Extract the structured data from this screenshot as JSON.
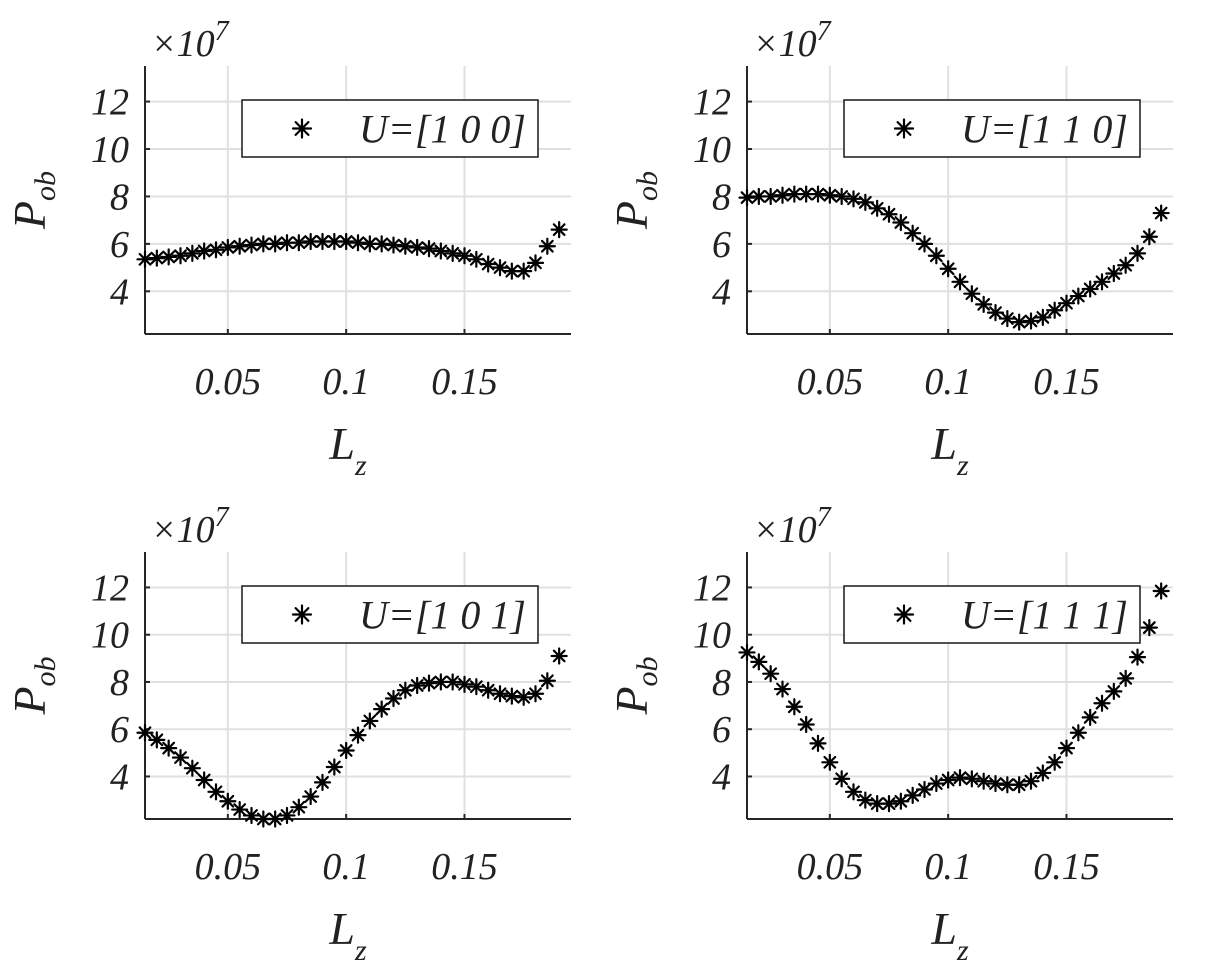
{
  "chart_data": [
    {
      "type": "scatter",
      "legend": "U=[1 0 0]",
      "legend_position": "top-right",
      "xlabel": "L",
      "xlabel_sub": "z",
      "ylabel": "P",
      "ylabel_sub": "ob",
      "multiplier": "×10",
      "multiplier_exp": "7",
      "xlim": [
        0.015,
        0.195
      ],
      "ylim": [
        2.2,
        13.5
      ],
      "xticks": [
        0.05,
        0.1,
        0.15
      ],
      "xtick_labels": [
        "0.05",
        "0.1",
        "0.15"
      ],
      "yticks": [
        4,
        6,
        8,
        10,
        12
      ],
      "ytick_labels": [
        "4",
        "6",
        "8",
        "10",
        "12"
      ],
      "grid": true,
      "x": [
        0.015,
        0.02,
        0.025,
        0.03,
        0.035,
        0.04,
        0.045,
        0.05,
        0.055,
        0.06,
        0.065,
        0.07,
        0.075,
        0.08,
        0.085,
        0.09,
        0.095,
        0.1,
        0.105,
        0.11,
        0.115,
        0.12,
        0.125,
        0.13,
        0.135,
        0.14,
        0.145,
        0.15,
        0.155,
        0.16,
        0.165,
        0.17,
        0.175,
        0.18,
        0.185,
        0.19
      ],
      "y": [
        5.35,
        5.4,
        5.45,
        5.5,
        5.6,
        5.7,
        5.75,
        5.85,
        5.9,
        5.95,
        6.0,
        6.0,
        6.05,
        6.05,
        6.1,
        6.1,
        6.1,
        6.1,
        6.05,
        6.0,
        6.0,
        5.95,
        5.9,
        5.85,
        5.8,
        5.7,
        5.6,
        5.5,
        5.35,
        5.15,
        5.0,
        4.85,
        4.85,
        5.2,
        5.9,
        6.6
      ]
    },
    {
      "type": "scatter",
      "legend": "U=[1 1 0]",
      "legend_position": "top-right",
      "xlabel": "L",
      "xlabel_sub": "z",
      "ylabel": "P",
      "ylabel_sub": "ob",
      "multiplier": "×10",
      "multiplier_exp": "7",
      "xlim": [
        0.015,
        0.195
      ],
      "ylim": [
        2.2,
        13.5
      ],
      "xticks": [
        0.05,
        0.1,
        0.15
      ],
      "xtick_labels": [
        "0.05",
        "0.1",
        "0.15"
      ],
      "yticks": [
        4,
        6,
        8,
        10,
        12
      ],
      "ytick_labels": [
        "4",
        "6",
        "8",
        "10",
        "12"
      ],
      "grid": true,
      "x": [
        0.015,
        0.02,
        0.025,
        0.03,
        0.035,
        0.04,
        0.045,
        0.05,
        0.055,
        0.06,
        0.065,
        0.07,
        0.075,
        0.08,
        0.085,
        0.09,
        0.095,
        0.1,
        0.105,
        0.11,
        0.115,
        0.12,
        0.125,
        0.13,
        0.135,
        0.14,
        0.145,
        0.15,
        0.155,
        0.16,
        0.165,
        0.17,
        0.175,
        0.18,
        0.185,
        0.19
      ],
      "y": [
        7.95,
        8.0,
        8.0,
        8.05,
        8.1,
        8.1,
        8.1,
        8.05,
        8.0,
        7.9,
        7.75,
        7.5,
        7.25,
        6.9,
        6.45,
        6.0,
        5.5,
        4.95,
        4.4,
        3.9,
        3.45,
        3.1,
        2.85,
        2.7,
        2.75,
        2.9,
        3.2,
        3.5,
        3.8,
        4.1,
        4.4,
        4.75,
        5.1,
        5.6,
        6.3,
        7.3
      ]
    },
    {
      "type": "scatter",
      "legend": "U=[1 0 1]",
      "legend_position": "top-right",
      "xlabel": "L",
      "xlabel_sub": "z",
      "ylabel": "P",
      "ylabel_sub": "ob",
      "multiplier": "×10",
      "multiplier_exp": "7",
      "xlim": [
        0.015,
        0.195
      ],
      "ylim": [
        2.2,
        13.5
      ],
      "xticks": [
        0.05,
        0.1,
        0.15
      ],
      "xtick_labels": [
        "0.05",
        "0.1",
        "0.15"
      ],
      "yticks": [
        4,
        6,
        8,
        10,
        12
      ],
      "ytick_labels": [
        "4",
        "6",
        "8",
        "10",
        "12"
      ],
      "grid": true,
      "x": [
        0.015,
        0.02,
        0.025,
        0.03,
        0.035,
        0.04,
        0.045,
        0.05,
        0.055,
        0.06,
        0.065,
        0.07,
        0.075,
        0.08,
        0.085,
        0.09,
        0.095,
        0.1,
        0.105,
        0.11,
        0.115,
        0.12,
        0.125,
        0.13,
        0.135,
        0.14,
        0.145,
        0.15,
        0.155,
        0.16,
        0.165,
        0.17,
        0.175,
        0.18,
        0.185,
        0.19
      ],
      "y": [
        5.85,
        5.55,
        5.2,
        4.8,
        4.35,
        3.85,
        3.35,
        2.95,
        2.6,
        2.35,
        2.2,
        2.2,
        2.35,
        2.7,
        3.15,
        3.75,
        4.4,
        5.1,
        5.75,
        6.35,
        6.85,
        7.3,
        7.65,
        7.85,
        7.95,
        8.0,
        8.0,
        7.9,
        7.8,
        7.65,
        7.5,
        7.4,
        7.35,
        7.5,
        8.05,
        9.1
      ]
    },
    {
      "type": "scatter",
      "legend": "U=[1 1 1]",
      "legend_position": "top-right",
      "xlabel": "L",
      "xlabel_sub": "z",
      "ylabel": "P",
      "ylabel_sub": "ob",
      "multiplier": "×10",
      "multiplier_exp": "7",
      "xlim": [
        0.015,
        0.195
      ],
      "ylim": [
        2.2,
        13.5
      ],
      "xticks": [
        0.05,
        0.1,
        0.15
      ],
      "xtick_labels": [
        "0.05",
        "0.1",
        "0.15"
      ],
      "yticks": [
        4,
        6,
        8,
        10,
        12
      ],
      "ytick_labels": [
        "4",
        "6",
        "8",
        "10",
        "12"
      ],
      "grid": true,
      "x": [
        0.015,
        0.02,
        0.025,
        0.03,
        0.035,
        0.04,
        0.045,
        0.05,
        0.055,
        0.06,
        0.065,
        0.07,
        0.075,
        0.08,
        0.085,
        0.09,
        0.095,
        0.1,
        0.105,
        0.11,
        0.115,
        0.12,
        0.125,
        0.13,
        0.135,
        0.14,
        0.145,
        0.15,
        0.155,
        0.16,
        0.165,
        0.17,
        0.175,
        0.18,
        0.185,
        0.19
      ],
      "y": [
        9.25,
        8.85,
        8.35,
        7.7,
        6.95,
        6.2,
        5.4,
        4.6,
        3.9,
        3.35,
        3.0,
        2.85,
        2.85,
        2.95,
        3.2,
        3.45,
        3.7,
        3.85,
        3.95,
        3.9,
        3.8,
        3.7,
        3.65,
        3.65,
        3.8,
        4.15,
        4.6,
        5.2,
        5.85,
        6.5,
        7.1,
        7.6,
        8.15,
        9.05,
        10.3,
        11.85
      ]
    }
  ]
}
